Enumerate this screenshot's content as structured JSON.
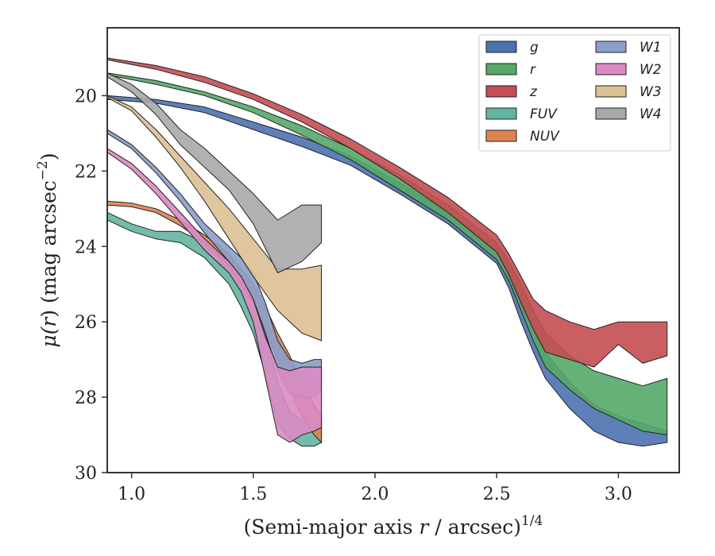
{
  "chart_data": {
    "type": "area",
    "title": "",
    "xlabel": "(Semi-major axis r / arcsec)",
    "xlabel_parts": {
      "prefix": "(Semi-major axis ",
      "var": "r",
      "suffix": " / arcsec)",
      "sup": "1/4"
    },
    "ylabel": "μ(r) (mag arcsec−2)",
    "ylabel_parts": {
      "mu": "μ(",
      "var": "r",
      "mid": ") (mag arcsec",
      "sup": "−2",
      "end": ")"
    },
    "xlim": [
      0.9,
      3.25
    ],
    "ylim": [
      30,
      18.2
    ],
    "y_inverted": true,
    "grid": false,
    "legend_position": "top-right",
    "legend_columns": 2,
    "x_ticks": [
      1.0,
      1.5,
      2.0,
      2.5,
      3.0
    ],
    "x_tick_labels": [
      "1.0",
      "1.5",
      "2.0",
      "2.5",
      "3.0"
    ],
    "y_ticks": [
      20,
      22,
      24,
      26,
      28,
      30
    ],
    "y_tick_labels": [
      "20",
      "22",
      "24",
      "26",
      "28",
      "30"
    ],
    "series": [
      {
        "name": "g",
        "color": "#4c72b0",
        "x": [
          0.9,
          1.1,
          1.3,
          1.5,
          1.7,
          1.9,
          2.1,
          2.3,
          2.5,
          2.55,
          2.6,
          2.65,
          2.7,
          2.8,
          2.9,
          3.0,
          3.1,
          3.2
        ],
        "lo": [
          20.0,
          20.1,
          20.3,
          20.7,
          21.1,
          21.6,
          22.3,
          23.1,
          24.1,
          24.6,
          25.4,
          26.1,
          26.8,
          27.6,
          28.2,
          28.5,
          28.7,
          28.9
        ],
        "hi": [
          20.1,
          20.2,
          20.45,
          20.9,
          21.35,
          21.85,
          22.6,
          23.4,
          24.45,
          25.1,
          26.0,
          26.8,
          27.5,
          28.3,
          28.9,
          29.2,
          29.3,
          29.2
        ]
      },
      {
        "name": "r",
        "color": "#55a868",
        "x": [
          0.9,
          1.1,
          1.3,
          1.5,
          1.7,
          1.9,
          2.1,
          2.3,
          2.5,
          2.55,
          2.6,
          2.65,
          2.7,
          2.8,
          2.9,
          3.0,
          3.1,
          3.2
        ],
        "lo": [
          19.4,
          19.6,
          19.9,
          20.3,
          20.8,
          21.4,
          22.1,
          22.9,
          23.9,
          24.4,
          25.0,
          25.7,
          26.3,
          26.9,
          27.3,
          27.5,
          27.7,
          27.5
        ],
        "hi": [
          19.45,
          19.7,
          20.0,
          20.45,
          21.05,
          21.7,
          22.5,
          23.3,
          24.35,
          24.9,
          25.7,
          26.5,
          27.2,
          27.8,
          28.3,
          28.6,
          28.9,
          29.0
        ]
      },
      {
        "name": "z",
        "color": "#c44e52",
        "x": [
          0.9,
          1.1,
          1.3,
          1.5,
          1.7,
          1.9,
          2.1,
          2.3,
          2.5,
          2.55,
          2.6,
          2.65,
          2.7,
          2.8,
          2.9,
          3.0,
          3.1,
          3.2
        ],
        "lo": [
          19.0,
          19.2,
          19.5,
          19.95,
          20.5,
          21.15,
          21.9,
          22.7,
          23.7,
          24.2,
          24.8,
          25.4,
          25.7,
          26.0,
          26.2,
          26.0,
          26.0,
          26.0
        ],
        "hi": [
          19.05,
          19.3,
          19.65,
          20.1,
          20.7,
          21.4,
          22.2,
          23.1,
          24.15,
          24.75,
          25.5,
          26.2,
          26.8,
          27.0,
          27.2,
          26.6,
          27.1,
          26.9
        ]
      },
      {
        "name": "FUV",
        "color": "#64b5a0",
        "x": [
          0.9,
          1.0,
          1.1,
          1.2,
          1.3,
          1.4,
          1.45,
          1.5,
          1.55,
          1.6,
          1.65,
          1.7,
          1.75,
          1.78
        ],
        "lo": [
          23.1,
          23.4,
          23.6,
          23.6,
          23.9,
          24.5,
          24.9,
          25.4,
          26.3,
          27.6,
          28.4,
          28.6,
          28.6,
          28.6
        ],
        "hi": [
          23.3,
          23.6,
          23.8,
          23.9,
          24.3,
          25.0,
          25.6,
          26.3,
          27.4,
          28.7,
          29.1,
          29.3,
          29.3,
          29.2
        ]
      },
      {
        "name": "NUV",
        "color": "#dd8452",
        "x": [
          0.9,
          1.0,
          1.1,
          1.2,
          1.3,
          1.4,
          1.45,
          1.5,
          1.55,
          1.6,
          1.65,
          1.7,
          1.75,
          1.78
        ],
        "lo": [
          22.8,
          22.85,
          23.0,
          23.3,
          23.7,
          24.2,
          24.6,
          25.0,
          25.6,
          26.3,
          26.9,
          27.6,
          28.2,
          28.5
        ],
        "hi": [
          22.9,
          22.95,
          23.1,
          23.45,
          23.9,
          24.5,
          25.0,
          25.5,
          26.2,
          27.0,
          27.8,
          28.5,
          29.0,
          29.2
        ]
      },
      {
        "name": "W1",
        "color": "#8c9fca",
        "x": [
          0.9,
          1.0,
          1.1,
          1.2,
          1.3,
          1.4,
          1.45,
          1.5,
          1.55,
          1.6,
          1.65,
          1.7,
          1.75,
          1.78
        ],
        "lo": [
          20.9,
          21.3,
          21.9,
          22.6,
          23.4,
          24.0,
          24.3,
          24.7,
          25.5,
          26.5,
          27.0,
          27.1,
          27.0,
          27.0
        ],
        "hi": [
          21.0,
          21.4,
          22.05,
          22.8,
          23.65,
          24.4,
          24.8,
          25.4,
          26.3,
          27.3,
          27.9,
          28.0,
          28.0,
          27.8
        ]
      },
      {
        "name": "W2",
        "color": "#da8bc3",
        "x": [
          0.9,
          1.0,
          1.1,
          1.2,
          1.3,
          1.4,
          1.45,
          1.5,
          1.55,
          1.6,
          1.65,
          1.7,
          1.75,
          1.78
        ],
        "lo": [
          21.4,
          21.8,
          22.4,
          23.1,
          23.8,
          24.4,
          24.8,
          25.4,
          26.4,
          27.2,
          27.3,
          27.2,
          27.2,
          27.2
        ],
        "hi": [
          21.5,
          21.95,
          22.6,
          23.35,
          24.1,
          24.7,
          25.2,
          26.0,
          27.5,
          29.0,
          29.2,
          29.0,
          28.9,
          28.8
        ]
      },
      {
        "name": "W3",
        "color": "#dbc094",
        "x": [
          0.9,
          1.0,
          1.1,
          1.2,
          1.3,
          1.4,
          1.5,
          1.6,
          1.7,
          1.78
        ],
        "lo": [
          20.0,
          20.3,
          20.9,
          21.6,
          22.3,
          23.0,
          23.8,
          24.6,
          24.6,
          24.5
        ],
        "hi": [
          20.05,
          20.4,
          21.1,
          21.9,
          22.8,
          23.8,
          24.8,
          25.7,
          26.3,
          26.5
        ]
      },
      {
        "name": "W4",
        "color": "#a8a8a8",
        "x": [
          0.9,
          1.0,
          1.1,
          1.2,
          1.3,
          1.4,
          1.5,
          1.6,
          1.7,
          1.78
        ],
        "lo": [
          19.4,
          19.7,
          20.2,
          20.9,
          21.4,
          22.0,
          22.6,
          23.3,
          22.9,
          22.9
        ],
        "hi": [
          19.5,
          19.9,
          20.5,
          21.3,
          21.9,
          22.5,
          23.4,
          24.7,
          24.4,
          23.9
        ]
      }
    ]
  }
}
